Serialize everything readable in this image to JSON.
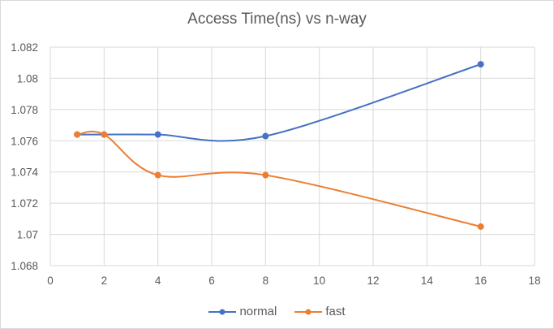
{
  "chart_data": {
    "type": "line",
    "title": "Access Time(ns) vs n-way",
    "xlabel": "",
    "ylabel": "",
    "xlim": [
      0,
      18
    ],
    "ylim": [
      1.068,
      1.082
    ],
    "x_ticks": [
      "0",
      "2",
      "4",
      "6",
      "8",
      "10",
      "12",
      "14",
      "16",
      "18"
    ],
    "y_ticks": [
      "1.068",
      "1.07",
      "1.072",
      "1.074",
      "1.076",
      "1.078",
      "1.08",
      "1.082"
    ],
    "grid": true,
    "smooth": true,
    "legend_position": "bottom",
    "series": [
      {
        "name": "normal",
        "color": "#4472C4",
        "x": [
          1,
          2,
          4,
          8,
          16
        ],
        "y": [
          1.0764,
          1.0764,
          1.0764,
          1.0763,
          1.0809
        ]
      },
      {
        "name": "fast",
        "color": "#ED7D31",
        "x": [
          1,
          2,
          4,
          8,
          16
        ],
        "y": [
          1.0764,
          1.0764,
          1.0738,
          1.0738,
          1.0705
        ]
      }
    ]
  }
}
